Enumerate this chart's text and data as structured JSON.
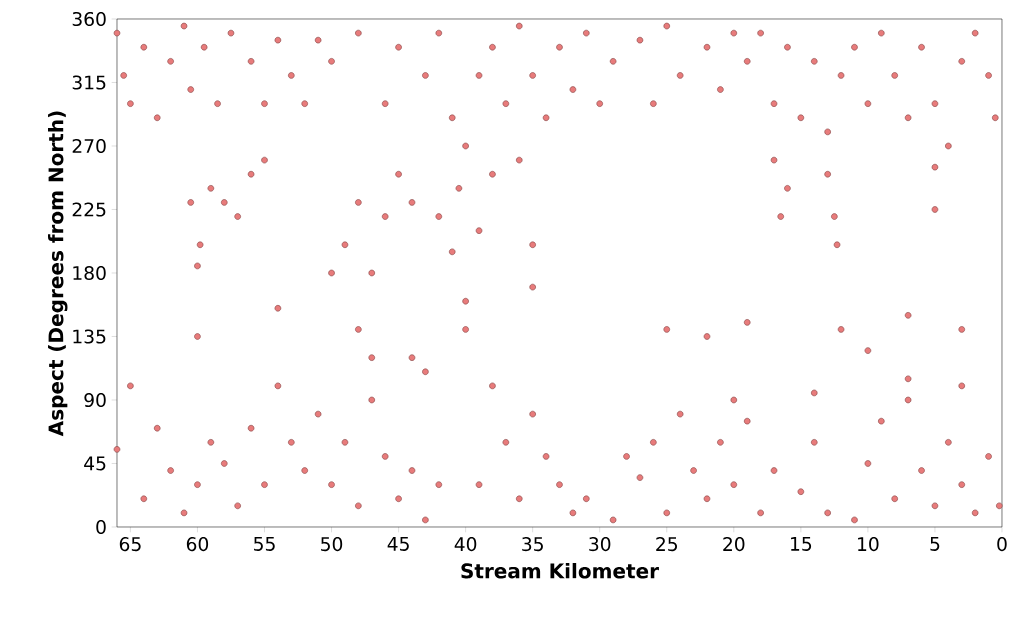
{
  "chart_data": {
    "type": "scatter",
    "xlabel": "Stream Kilometer",
    "ylabel": "Aspect (Degrees from North)",
    "xlim": [
      66,
      0
    ],
    "ylim": [
      0,
      360
    ],
    "xticks": [
      65,
      60,
      55,
      50,
      45,
      40,
      35,
      30,
      25,
      20,
      15,
      10,
      5,
      0
    ],
    "yticks": [
      0,
      45,
      90,
      135,
      180,
      225,
      270,
      315,
      360
    ],
    "marker": "circle",
    "series": [
      {
        "color": "#e87b7b",
        "x": [
          66,
          65.5,
          65,
          64,
          63,
          62,
          61,
          60.5,
          59.5,
          58.5,
          57.5,
          56,
          55,
          54,
          53,
          51,
          50,
          48,
          46,
          45,
          43,
          42,
          41,
          40,
          39,
          38,
          37,
          36,
          35,
          34,
          33,
          32,
          31,
          30,
          29,
          27,
          26,
          25,
          24,
          22,
          21,
          20,
          19,
          18,
          17,
          16,
          15,
          14,
          13,
          12,
          11,
          10,
          9,
          8,
          7,
          6,
          5,
          4,
          3,
          2,
          1,
          0.5,
          60.5,
          60,
          59.8,
          59,
          58,
          57,
          56,
          55,
          52,
          50,
          49,
          48,
          47,
          46,
          45,
          44,
          42,
          41,
          40.5,
          40,
          40,
          39,
          38,
          36,
          35,
          35,
          17,
          16,
          16.5,
          13,
          12.5,
          12.3,
          5,
          5,
          60,
          54,
          48,
          47,
          44,
          43,
          7,
          7,
          3,
          3,
          22,
          19,
          25,
          12,
          10,
          14,
          20,
          66,
          65,
          64,
          63,
          62,
          61,
          60,
          59,
          58,
          57,
          56,
          55,
          54,
          53,
          52,
          51,
          50,
          49,
          48,
          47,
          46,
          45,
          44,
          43,
          42,
          39,
          38,
          37,
          36,
          35,
          34,
          33,
          32,
          31,
          29,
          28,
          27,
          26,
          25,
          24,
          23,
          22,
          21,
          20,
          19,
          18,
          17,
          15,
          14,
          13,
          11,
          10,
          9,
          8,
          7,
          6,
          5,
          4,
          3,
          2,
          1,
          0.2
        ],
        "values": [
          350,
          320,
          300,
          340,
          290,
          330,
          355,
          310,
          340,
          300,
          350,
          330,
          300,
          345,
          320,
          345,
          330,
          350,
          300,
          340,
          320,
          350,
          290,
          270,
          320,
          340,
          300,
          355,
          320,
          290,
          340,
          310,
          350,
          300,
          330,
          345,
          300,
          355,
          320,
          340,
          310,
          350,
          330,
          350,
          300,
          340,
          290,
          330,
          280,
          320,
          340,
          300,
          350,
          320,
          290,
          340,
          300,
          270,
          330,
          350,
          320,
          290,
          230,
          185,
          200,
          240,
          230,
          220,
          250,
          260,
          300,
          180,
          200,
          230,
          180,
          220,
          250,
          230,
          220,
          195,
          240,
          160,
          140,
          210,
          250,
          260,
          200,
          170,
          260,
          240,
          220,
          250,
          220,
          200,
          255,
          225,
          135,
          155,
          140,
          120,
          120,
          110,
          150,
          105,
          140,
          100,
          135,
          145,
          140,
          140,
          125,
          95,
          90,
          55,
          100,
          20,
          70,
          40,
          10,
          30,
          60,
          45,
          15,
          70,
          30,
          100,
          60,
          40,
          80,
          30,
          60,
          15,
          90,
          50,
          20,
          40,
          5,
          30,
          30,
          100,
          60,
          20,
          80,
          50,
          30,
          10,
          20,
          5,
          50,
          35,
          60,
          10,
          80,
          40,
          20,
          60,
          30,
          75,
          10,
          40,
          25,
          60,
          10,
          5,
          45,
          75,
          20,
          90,
          40,
          15,
          60,
          30,
          10,
          50,
          15
        ]
      }
    ]
  }
}
